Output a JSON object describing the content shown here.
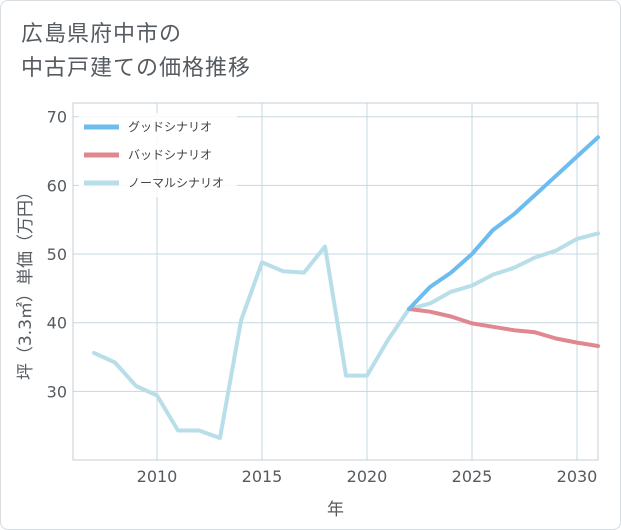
{
  "title_lines": [
    "広島県府中市の",
    "中古戸建ての価格推移"
  ],
  "chart_data": {
    "type": "line",
    "title": "広島県府中市の中古戸建ての価格推移",
    "xlabel": "年",
    "ylabel": "坪（3.3㎡）単価（万円）",
    "xlim": [
      2006,
      2031
    ],
    "ylim": [
      20,
      72
    ],
    "xticks": [
      2010,
      2015,
      2020,
      2025,
      2030
    ],
    "yticks": [
      30,
      40,
      50,
      60,
      70
    ],
    "grid": true,
    "legend_position": "top-left",
    "series": [
      {
        "name": "グッドシナリオ",
        "color": "#6cbcef",
        "x": [
          2022,
          2023,
          2024,
          2025,
          2026,
          2027,
          2028,
          2029,
          2030,
          2031
        ],
        "values": [
          42.0,
          45.2,
          47.3,
          50.0,
          53.5,
          55.8,
          58.6,
          61.4,
          64.2,
          67.0
        ]
      },
      {
        "name": "バッドシナリオ",
        "color": "#e0888f",
        "x": [
          2022,
          2023,
          2024,
          2025,
          2026,
          2027,
          2028,
          2029,
          2030,
          2031
        ],
        "values": [
          42.0,
          41.6,
          40.9,
          39.9,
          39.4,
          38.9,
          38.6,
          37.7,
          37.1,
          36.6
        ]
      },
      {
        "name": "ノーマルシナリオ",
        "color": "#b8deea",
        "x": [
          2007,
          2008,
          2009,
          2010,
          2011,
          2012,
          2013,
          2014,
          2015,
          2016,
          2017,
          2018,
          2019,
          2020,
          2021,
          2022,
          2023,
          2024,
          2025,
          2026,
          2027,
          2028,
          2029,
          2030,
          2031
        ],
        "values": [
          35.6,
          34.2,
          30.8,
          29.4,
          24.3,
          24.3,
          23.2,
          40.3,
          48.8,
          47.5,
          47.3,
          51.1,
          32.3,
          32.3,
          37.5,
          42.0,
          42.8,
          44.5,
          45.4,
          47.0,
          48.0,
          49.5,
          50.5,
          52.2,
          53.0
        ]
      }
    ]
  }
}
